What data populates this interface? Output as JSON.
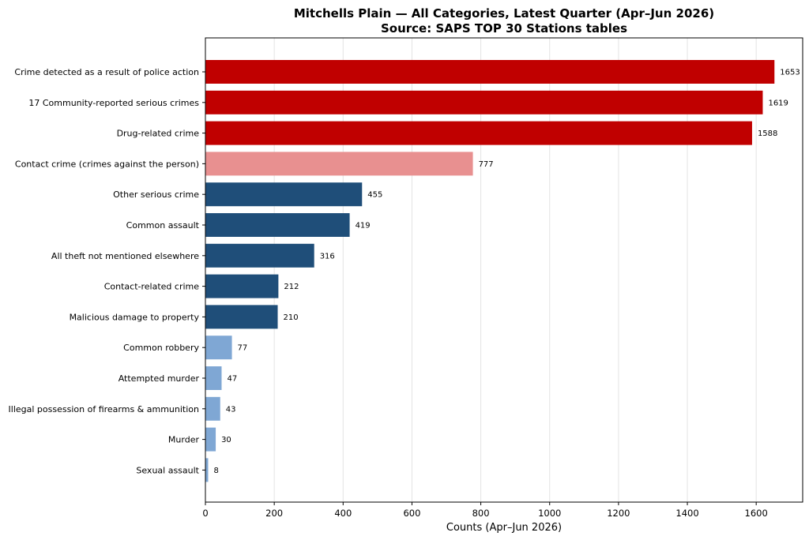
{
  "chart_data": {
    "type": "bar",
    "orientation": "horizontal",
    "title": "Mitchells Plain — All Categories, Latest Quarter (Apr–Jun 2026)",
    "subtitle": "Source: SAPS TOP 30 Stations tables",
    "xlabel": "Counts (Apr–Jun 2026)",
    "ylabel": "",
    "xlim": [
      0,
      1735
    ],
    "xticks": [
      0,
      200,
      400,
      600,
      800,
      1000,
      1200,
      1400,
      1600
    ],
    "grid": "vertical",
    "categories": [
      "Crime detected as a result of police action",
      "17 Community-reported serious crimes",
      "Drug-related crime",
      "Contact crime (crimes against the person)",
      "Other serious crime",
      "Common assault",
      "All theft not mentioned elsewhere",
      "Contact-related crime",
      "Malicious damage to property",
      "Common robbery",
      "Attempted murder",
      "Illegal possession of firearms & ammunition",
      "Murder",
      "Sexual assault"
    ],
    "values": [
      1653,
      1619,
      1588,
      777,
      455,
      419,
      316,
      212,
      210,
      77,
      47,
      43,
      30,
      8
    ],
    "colors": [
      "#c00000",
      "#c00000",
      "#c00000",
      "#e89090",
      "#1f4e79",
      "#1f4e79",
      "#1f4e79",
      "#1f4e79",
      "#1f4e79",
      "#7fa7d4",
      "#7fa7d4",
      "#7fa7d4",
      "#7fa7d4",
      "#7fa7d4"
    ]
  }
}
